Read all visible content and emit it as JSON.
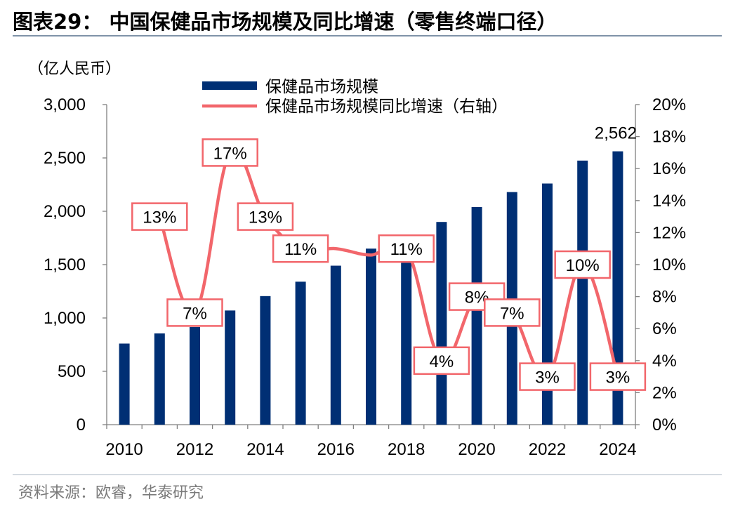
{
  "title": "图表29：  中国保健品市场规模及同比增速（零售终端口径）",
  "source": "资料来源：欧睿，华泰研究",
  "colors": {
    "bar": "#002f74",
    "line": "#f2666b",
    "label_border": "#f2666b",
    "axis": "#808080"
  },
  "chart_data": {
    "type": "bar+line",
    "title": "中国保健品市场规模及同比增速（零售终端口径）",
    "unit_label": "（亿人民币）",
    "categories": [
      "2010",
      "2011",
      "2012",
      "2013",
      "2014",
      "2015",
      "2016",
      "2017",
      "2018",
      "2019",
      "2020",
      "2021",
      "2022",
      "2023",
      "2024"
    ],
    "x_tick_labels": [
      "2010",
      "2012",
      "2014",
      "2016",
      "2018",
      "2020",
      "2022",
      "2024"
    ],
    "series": [
      {
        "name": "保健品市场规模",
        "type": "bar",
        "axis": "left",
        "values": [
          760,
          855,
          915,
          1070,
          1205,
          1340,
          1490,
          1650,
          1580,
          1900,
          2040,
          2180,
          2260,
          2475,
          2562
        ]
      },
      {
        "name": "保健品市场规模同比增速（右轴）",
        "type": "line",
        "axis": "right",
        "values": [
          null,
          13,
          7,
          17,
          13,
          11,
          11,
          10.6,
          11,
          4,
          8,
          7,
          3,
          10,
          3
        ],
        "data_labels": [
          "",
          "13%",
          "7%",
          "17%",
          "13%",
          "11%",
          "",
          "",
          "11%",
          "4%",
          "8%",
          "7%",
          "3%",
          "10%",
          "3%"
        ]
      }
    ],
    "bar_value_label": {
      "index": 14,
      "text": "2,562"
    },
    "y_left": {
      "min": 0,
      "max": 3000,
      "step": 500,
      "tick_labels": [
        "0",
        "500",
        "1,000",
        "1,500",
        "2,000",
        "2,500",
        "3,000"
      ]
    },
    "y_right": {
      "min": 0,
      "max": 20,
      "step": 2,
      "tick_labels": [
        "0%",
        "2%",
        "4%",
        "6%",
        "8%",
        "10%",
        "12%",
        "14%",
        "16%",
        "18%",
        "20%"
      ]
    },
    "legend": {
      "position": "top-center",
      "entries": [
        "保健品市场规模",
        "保健品市场规模同比增速（右轴）"
      ]
    },
    "grid": false
  }
}
